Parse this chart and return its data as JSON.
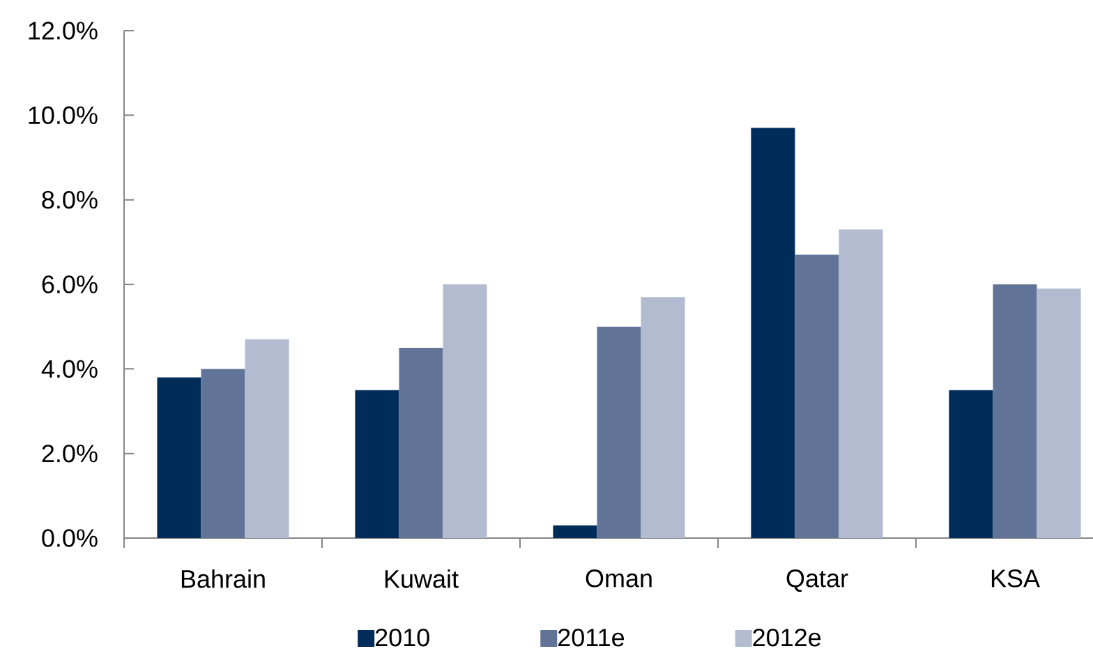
{
  "chart_data": {
    "type": "bar",
    "categories": [
      "Bahrain",
      "Kuwait",
      "Oman",
      "Qatar",
      "KSA"
    ],
    "series": [
      {
        "name": "2010",
        "color": "#002c5a",
        "values": [
          3.8,
          3.5,
          0.3,
          9.7,
          3.5
        ]
      },
      {
        "name": "2011e",
        "color": "#617497",
        "values": [
          4.0,
          4.5,
          5.0,
          6.7,
          6.0
        ]
      },
      {
        "name": "2012e",
        "color": "#b3bbd0",
        "values": [
          4.7,
          6.0,
          5.7,
          7.3,
          5.9
        ]
      }
    ],
    "ylim": [
      0,
      12
    ],
    "yticks": [
      {
        "value": 0,
        "label": "0.0%"
      },
      {
        "value": 2,
        "label": "2.0%"
      },
      {
        "value": 4,
        "label": "4.0%"
      },
      {
        "value": 6,
        "label": "6.0%"
      },
      {
        "value": 8,
        "label": "8.0%"
      },
      {
        "value": 10,
        "label": "10.0%"
      },
      {
        "value": 12,
        "label": "12.0%"
      }
    ],
    "legend": "bottom"
  }
}
